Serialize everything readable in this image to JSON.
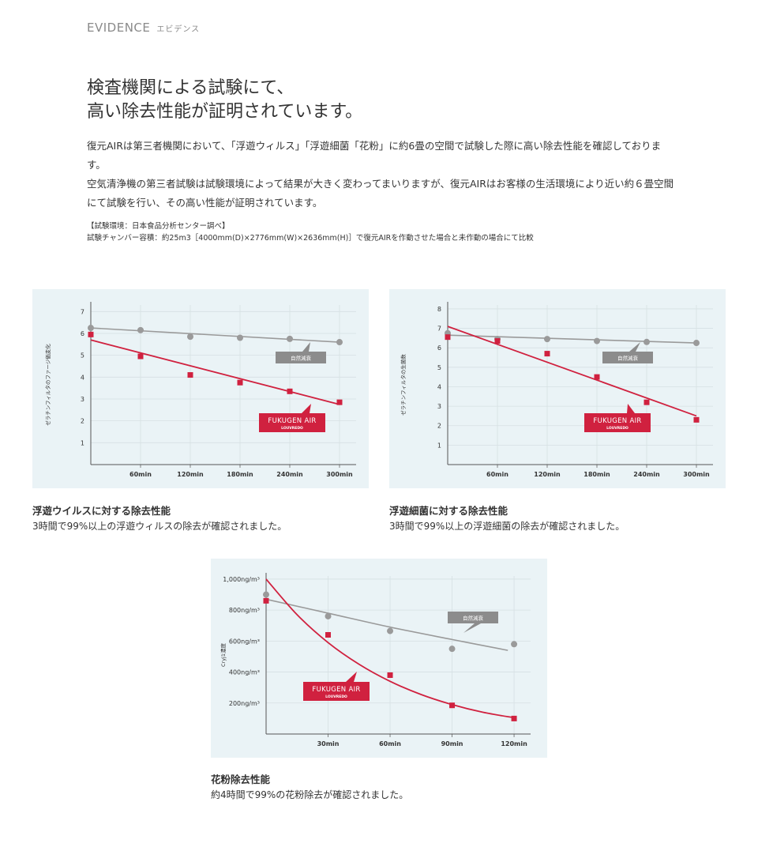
{
  "section": {
    "label": "EVIDENCE",
    "label_ja": "エビデンス"
  },
  "headline": {
    "line1": "検査機関による試験にて、",
    "line2": "高い除去性能が証明されています。"
  },
  "body": {
    "p1": "復元AIRは第三者機関において、「浮遊ウィルス」「浮遊細菌「花粉」に約6畳の空間で試験した際に高い除去性能を確認しております。",
    "p2": "空気清浄機の第三者試験は試験環境によって結果が大きく変わってまいりますが、復元AIRはお客様の生活環境により近い約６畳空間にて試験を行い、その高い性能が証明されています。"
  },
  "notes": {
    "line1": "【試験環境：日本食品分析センター調べ】",
    "line2": "試験チャンバー容積：約25m3［4000mm(D)×2776mm(W)×2636mm(H)］で復元AIRを作動させた場合と未作動の場合にて比較"
  },
  "colors": {
    "device": "#d0213f",
    "natural": "#9a9a9a",
    "panel_bg": "#eaf3f6"
  },
  "captions": [
    {
      "title": "浮遊ウイルスに対する除去性能",
      "text": "3時間で99%以上の浮遊ウィルスの除去が確認されました。"
    },
    {
      "title": "浮遊細菌に対する除去性能",
      "text": "3時間で99%以上の浮遊細菌の除去が確認されました。"
    },
    {
      "title": "花粉除去性能",
      "text": "約4時間で99%の花粉除去が確認されました。"
    }
  ],
  "chart_data": [
    {
      "type": "scatter",
      "ylabel": "ゼラチンフィルタのファージ価変化",
      "xlabel": "",
      "x_tick_labels": [
        "60min",
        "120min",
        "180min",
        "240min",
        "300min"
      ],
      "x_ticks": [
        60,
        120,
        180,
        240,
        300
      ],
      "xlim": [
        0,
        320
      ],
      "y_ticks": [
        1,
        2,
        3,
        4,
        5,
        6,
        7
      ],
      "ylim": [
        0,
        7.3
      ],
      "grid": true,
      "legend_labels": {
        "natural": "自然減衰",
        "device_line1": "FUKUGEN AIR",
        "device_line2": "LOUVREDO"
      },
      "series": [
        {
          "name": "自然減衰",
          "x": [
            0,
            60,
            120,
            180,
            240,
            300
          ],
          "values": [
            6.25,
            6.15,
            5.85,
            5.8,
            5.75,
            5.6
          ],
          "trend": {
            "x": [
              0,
              300
            ],
            "values": [
              6.25,
              5.6
            ]
          }
        },
        {
          "name": "FUKUGEN AIR",
          "x": [
            0,
            60,
            120,
            180,
            240,
            300
          ],
          "values": [
            5.95,
            4.95,
            4.1,
            3.75,
            3.35,
            2.85
          ],
          "trend": {
            "x": [
              0,
              300
            ],
            "values": [
              5.7,
              2.75
            ]
          }
        }
      ]
    },
    {
      "type": "scatter",
      "ylabel": "ゼラチンフィルタの生菌数",
      "xlabel": "",
      "x_tick_labels": [
        "60min",
        "120min",
        "180min",
        "240min",
        "300min"
      ],
      "x_ticks": [
        60,
        120,
        180,
        240,
        300
      ],
      "xlim": [
        0,
        320
      ],
      "y_ticks": [
        1,
        2,
        3,
        4,
        5,
        6,
        7,
        8
      ],
      "ylim": [
        0,
        8.2
      ],
      "grid": true,
      "legend_labels": {
        "natural": "自然減衰",
        "device_line1": "FUKUGEN AIR",
        "device_line2": "LOUVREDO"
      },
      "series": [
        {
          "name": "自然減衰",
          "x": [
            0,
            60,
            120,
            180,
            240,
            300
          ],
          "values": [
            6.75,
            6.45,
            6.45,
            6.35,
            6.3,
            6.25
          ],
          "trend": {
            "x": [
              0,
              300
            ],
            "values": [
              6.65,
              6.25
            ]
          }
        },
        {
          "name": "FUKUGEN AIR",
          "x": [
            0,
            60,
            120,
            180,
            240,
            300
          ],
          "values": [
            6.55,
            6.35,
            5.7,
            4.5,
            3.2,
            2.3
          ],
          "trend": {
            "x": [
              0,
              300
            ],
            "values": [
              7.1,
              2.5
            ]
          }
        }
      ]
    },
    {
      "type": "scatter",
      "ylabel": "Cryj1濃度",
      "xlabel": "",
      "x_tick_labels": [
        "30min",
        "60min",
        "90min",
        "120min"
      ],
      "x_ticks": [
        30,
        60,
        90,
        120
      ],
      "xlim": [
        0,
        128
      ],
      "y_tick_labels": [
        "200ng/m³",
        "400ng/m³",
        "600ng/m³",
        "800ng/m³",
        "1,000ng/m³"
      ],
      "y_ticks": [
        200,
        400,
        600,
        800,
        1000
      ],
      "ylim": [
        0,
        1020
      ],
      "grid": true,
      "legend_labels": {
        "natural": "自然減衰",
        "device_line1": "FUKUGEN AIR",
        "device_line2": "LOUVREDO"
      },
      "series": [
        {
          "name": "自然減衰",
          "x": [
            0,
            30,
            60,
            90,
            120
          ],
          "values": [
            900,
            760,
            665,
            550,
            580
          ],
          "trend": {
            "x": [
              0,
              30,
              60,
              90,
              117
            ],
            "values": [
              870,
              780,
              690,
              610,
              540
            ]
          }
        },
        {
          "name": "FUKUGEN AIR",
          "x": [
            0,
            30,
            60,
            90,
            120
          ],
          "values": [
            860,
            640,
            380,
            185,
            100
          ],
          "trend": {
            "x": [
              0,
              15,
              30,
              45,
              60,
              75,
              90,
              105,
              120
            ],
            "values": [
              1000,
              770,
              590,
              450,
              340,
              255,
              190,
              140,
              105
            ]
          }
        }
      ]
    }
  ]
}
